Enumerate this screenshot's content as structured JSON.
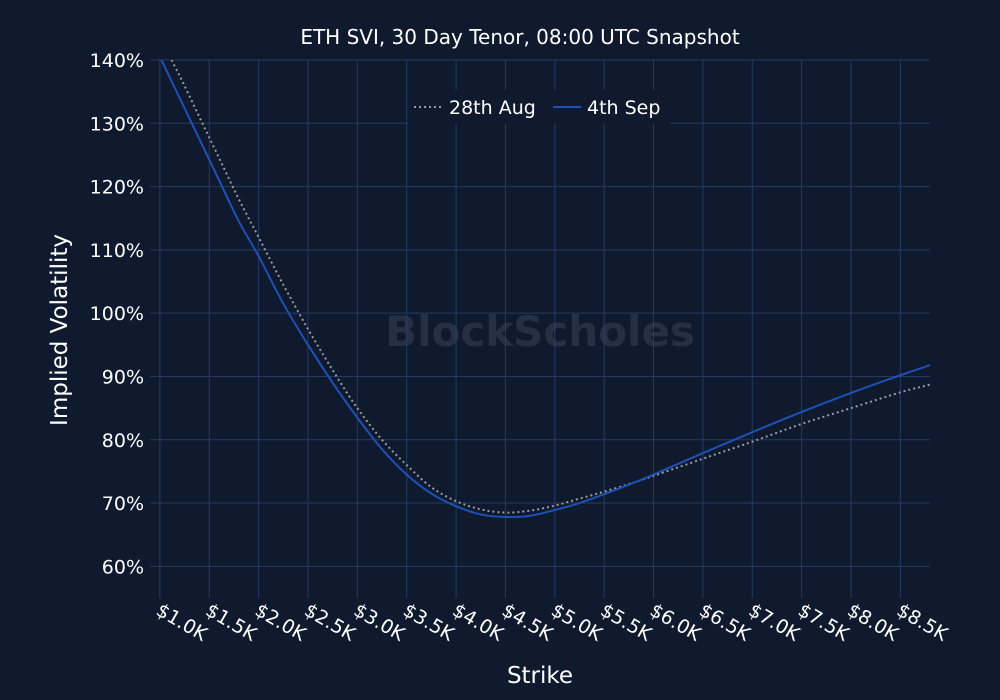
{
  "chart_data": {
    "type": "line",
    "title": "ETH SVI, 30 Day Tenor, 08:00 UTC Snapshot",
    "xlabel": "Strike",
    "ylabel": "Implied Volatility",
    "watermark": "BlockScholes",
    "x_ticks": [
      {
        "value": 1000,
        "label": "$1.0K"
      },
      {
        "value": 1500,
        "label": "$1.5K"
      },
      {
        "value": 2000,
        "label": "$2.0K"
      },
      {
        "value": 2500,
        "label": "$2.5K"
      },
      {
        "value": 3000,
        "label": "$3.0K"
      },
      {
        "value": 3500,
        "label": "$3.5K"
      },
      {
        "value": 4000,
        "label": "$4.0K"
      },
      {
        "value": 4500,
        "label": "$4.5K"
      },
      {
        "value": 5000,
        "label": "$5.0K"
      },
      {
        "value": 5500,
        "label": "$5.5K"
      },
      {
        "value": 6000,
        "label": "$6.0K"
      },
      {
        "value": 6500,
        "label": "$6.5K"
      },
      {
        "value": 7000,
        "label": "$7.0K"
      },
      {
        "value": 7500,
        "label": "$7.5K"
      },
      {
        "value": 8000,
        "label": "$8.0K"
      },
      {
        "value": 8500,
        "label": "$8.5K"
      }
    ],
    "y_ticks": [
      {
        "value": 60,
        "label": "60%"
      },
      {
        "value": 70,
        "label": "70%"
      },
      {
        "value": 80,
        "label": "80%"
      },
      {
        "value": 90,
        "label": "90%"
      },
      {
        "value": 100,
        "label": "100%"
      },
      {
        "value": 110,
        "label": "110%"
      },
      {
        "value": 120,
        "label": "120%"
      },
      {
        "value": 130,
        "label": "130%"
      },
      {
        "value": 140,
        "label": "140%"
      }
    ],
    "xlim": [
      900,
      8800
    ],
    "ylim": [
      55,
      140
    ],
    "grid": true,
    "legend_position": "top-center",
    "series": [
      {
        "name": "28th Aug",
        "color": "#9a9a9a",
        "style": "dotted",
        "x": [
          1000,
          1200,
          1400,
          1600,
          1800,
          2000,
          2250,
          2500,
          2750,
          3000,
          3250,
          3500,
          3750,
          4000,
          4250,
          4500,
          4750,
          5000,
          5250,
          5500,
          5750,
          6000,
          6500,
          7000,
          7500,
          8000,
          8500,
          8800
        ],
        "y": [
          143.5,
          137.5,
          131,
          124.5,
          118,
          112,
          104.5,
          97.5,
          91,
          85,
          80,
          76,
          72.5,
          70.3,
          69,
          68.5,
          68.8,
          69.6,
          70.7,
          71.8,
          73,
          74.3,
          77,
          79.7,
          82.5,
          85,
          87.5,
          88.7
        ]
      },
      {
        "name": "4th Sep",
        "color": "#1f50b5",
        "style": "solid",
        "x": [
          1000,
          1200,
          1400,
          1600,
          1800,
          2000,
          2250,
          2500,
          2750,
          3000,
          3250,
          3500,
          3750,
          4000,
          4250,
          4500,
          4750,
          5000,
          5250,
          5500,
          5750,
          6000,
          6500,
          7000,
          7500,
          8000,
          8500,
          8800
        ],
        "y": [
          140.5,
          134,
          127.5,
          121,
          114.5,
          109,
          101.5,
          95,
          89,
          83.5,
          78.5,
          74.5,
          71.5,
          69.5,
          68.2,
          67.8,
          68,
          68.9,
          70,
          71.4,
          72.9,
          74.5,
          77.9,
          81.2,
          84.4,
          87.4,
          90.2,
          91.8
        ]
      }
    ]
  }
}
